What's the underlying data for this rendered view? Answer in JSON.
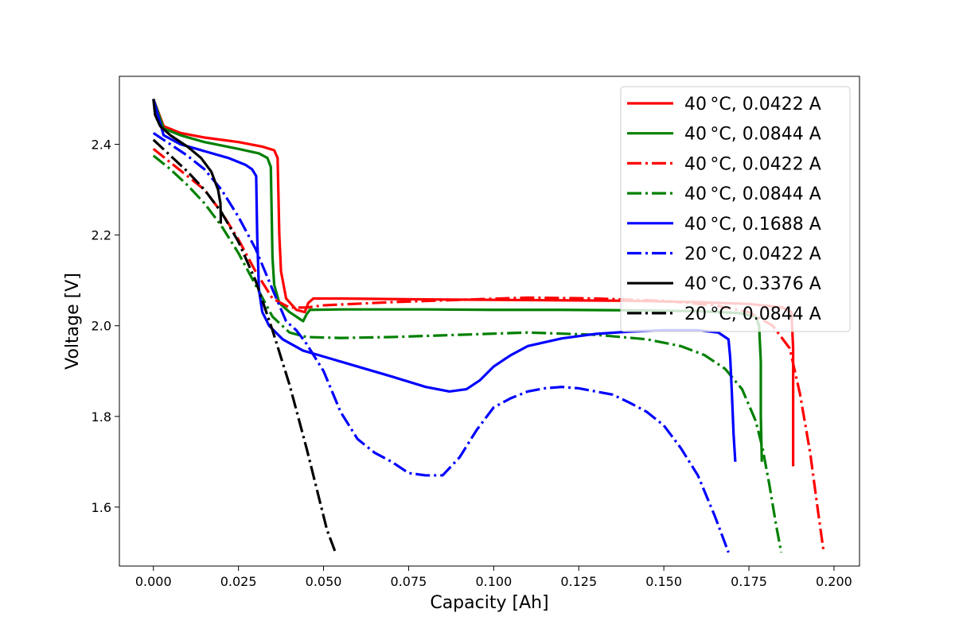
{
  "chart_data": {
    "type": "line",
    "xlabel": "Capacity [Ah]",
    "ylabel": "Voltage [V]",
    "xlim": [
      -0.01,
      0.2075
    ],
    "ylim": [
      1.47,
      2.55
    ],
    "xticks": [
      0.0,
      0.025,
      0.05,
      0.075,
      0.1,
      0.125,
      0.15,
      0.175,
      0.2
    ],
    "xtick_labels": [
      "0.000",
      "0.025",
      "0.050",
      "0.075",
      "0.100",
      "0.125",
      "0.150",
      "0.175",
      "0.200"
    ],
    "yticks": [
      1.6,
      1.8,
      2.0,
      2.2,
      2.4
    ],
    "ytick_labels": [
      "1.6",
      "1.8",
      "2.0",
      "2.2",
      "2.4"
    ],
    "grid": false,
    "legend_position": "top-right",
    "series": [
      {
        "name": "40$^\\circ$C, 0.0422 A",
        "legend_label": "40 °C, 0.0422 A",
        "color": "#ff0000",
        "linestyle": "solid",
        "x": [
          0.0,
          0.003,
          0.008,
          0.015,
          0.025,
          0.032,
          0.0355,
          0.0365,
          0.037,
          0.0375,
          0.039,
          0.042,
          0.0445,
          0.0455,
          0.047,
          0.055,
          0.08,
          0.1,
          0.12,
          0.14,
          0.16,
          0.175,
          0.185,
          0.1875,
          0.188,
          0.188,
          0.188
        ],
        "y": [
          2.5,
          2.44,
          2.425,
          2.415,
          2.405,
          2.395,
          2.387,
          2.37,
          2.2,
          2.12,
          2.06,
          2.035,
          2.03,
          2.05,
          2.06,
          2.06,
          2.058,
          2.057,
          2.056,
          2.055,
          2.052,
          2.048,
          2.04,
          2.03,
          1.95,
          1.8,
          1.69
        ]
      },
      {
        "name": "40$^\\circ$C, 0.0844 A",
        "legend_label": "40 °C, 0.0844 A",
        "color": "#008000",
        "linestyle": "solid",
        "x": [
          0.0,
          0.003,
          0.008,
          0.015,
          0.025,
          0.031,
          0.0335,
          0.0345,
          0.035,
          0.0355,
          0.037,
          0.04,
          0.044,
          0.045,
          0.046,
          0.055,
          0.08,
          0.1,
          0.12,
          0.14,
          0.16,
          0.172,
          0.177,
          0.178,
          0.1785,
          0.1785,
          0.1788
        ],
        "y": [
          2.5,
          2.435,
          2.42,
          2.405,
          2.39,
          2.38,
          2.37,
          2.35,
          2.15,
          2.09,
          2.05,
          2.03,
          2.01,
          2.025,
          2.035,
          2.036,
          2.036,
          2.035,
          2.035,
          2.034,
          2.032,
          2.028,
          2.02,
          2.0,
          1.92,
          1.8,
          1.7
        ]
      },
      {
        "name": "40$^\\circ$C, 0.0422 A",
        "legend_label": "40 °C, 0.0422 A",
        "color": "#ff0000",
        "linestyle": "dashdot",
        "x": [
          0.0,
          0.005,
          0.01,
          0.015,
          0.02,
          0.025,
          0.03,
          0.035,
          0.04,
          0.045,
          0.05,
          0.07,
          0.09,
          0.11,
          0.13,
          0.15,
          0.165,
          0.175,
          0.182,
          0.187,
          0.19,
          0.193,
          0.1955,
          0.197
        ],
        "y": [
          2.39,
          2.36,
          2.33,
          2.3,
          2.25,
          2.19,
          2.12,
          2.06,
          2.04,
          2.04,
          2.045,
          2.052,
          2.057,
          2.062,
          2.06,
          2.055,
          2.045,
          2.03,
          2.0,
          1.95,
          1.85,
          1.72,
          1.58,
          1.5
        ]
      },
      {
        "name": "40$^\\circ$C, 0.0844 A",
        "legend_label": "40 °C, 0.0844 A",
        "color": "#008000",
        "linestyle": "dashdot",
        "x": [
          0.0,
          0.005,
          0.01,
          0.015,
          0.02,
          0.025,
          0.03,
          0.035,
          0.04,
          0.045,
          0.055,
          0.07,
          0.09,
          0.11,
          0.13,
          0.145,
          0.155,
          0.162,
          0.168,
          0.173,
          0.177,
          0.179,
          0.181,
          0.183,
          0.1845
        ],
        "y": [
          2.375,
          2.345,
          2.31,
          2.27,
          2.22,
          2.16,
          2.09,
          2.02,
          1.985,
          1.975,
          1.973,
          1.975,
          1.98,
          1.985,
          1.98,
          1.97,
          1.955,
          1.935,
          1.905,
          1.86,
          1.79,
          1.73,
          1.65,
          1.56,
          1.5
        ]
      },
      {
        "name": "40$^\\circ$C, 0.1688 A",
        "legend_label": "40 °C, 0.1688 A",
        "color": "#0000ff",
        "linestyle": "solid",
        "x": [
          0.0,
          0.003,
          0.008,
          0.015,
          0.022,
          0.027,
          0.029,
          0.0302,
          0.0305,
          0.031,
          0.032,
          0.034,
          0.038,
          0.044,
          0.05,
          0.06,
          0.07,
          0.08,
          0.087,
          0.092,
          0.096,
          0.1,
          0.105,
          0.11,
          0.12,
          0.13,
          0.14,
          0.15,
          0.16,
          0.166,
          0.169,
          0.1695,
          0.17,
          0.1705,
          0.171
        ],
        "y": [
          2.5,
          2.42,
          2.4,
          2.385,
          2.37,
          2.355,
          2.345,
          2.33,
          2.2,
          2.08,
          2.03,
          2.0,
          1.97,
          1.945,
          1.932,
          1.91,
          1.888,
          1.865,
          1.855,
          1.86,
          1.88,
          1.91,
          1.935,
          1.955,
          1.972,
          1.982,
          1.987,
          1.99,
          1.99,
          1.985,
          1.97,
          1.93,
          1.85,
          1.76,
          1.7
        ]
      },
      {
        "name": "20$^\\circ$C, 0.0422 A",
        "legend_label": "20 °C, 0.0422 A",
        "color": "#0000ff",
        "linestyle": "dashdot",
        "x": [
          0.0,
          0.005,
          0.01,
          0.015,
          0.02,
          0.025,
          0.03,
          0.035,
          0.039,
          0.042,
          0.045,
          0.05,
          0.055,
          0.06,
          0.065,
          0.07,
          0.075,
          0.08,
          0.085,
          0.09,
          0.095,
          0.1,
          0.105,
          0.11,
          0.115,
          0.12,
          0.125,
          0.13,
          0.135,
          0.14,
          0.145,
          0.15,
          0.155,
          0.16,
          0.165,
          0.169
        ],
        "y": [
          2.425,
          2.4,
          2.375,
          2.345,
          2.3,
          2.24,
          2.17,
          2.08,
          2.01,
          1.99,
          1.96,
          1.9,
          1.81,
          1.75,
          1.72,
          1.7,
          1.675,
          1.67,
          1.67,
          1.71,
          1.77,
          1.82,
          1.84,
          1.855,
          1.862,
          1.865,
          1.862,
          1.855,
          1.848,
          1.83,
          1.81,
          1.78,
          1.73,
          1.67,
          1.58,
          1.5
        ]
      },
      {
        "name": "40$^\\circ$C, 0.3376 A",
        "legend_label": "40 °C, 0.3376 A",
        "color": "#000000",
        "linestyle": "solid",
        "x": [
          0.0,
          0.0005,
          0.002,
          0.005,
          0.01,
          0.014,
          0.017,
          0.019,
          0.0197,
          0.0198,
          0.0198
        ],
        "y": [
          2.5,
          2.465,
          2.44,
          2.42,
          2.395,
          2.37,
          2.34,
          2.3,
          2.27,
          2.24,
          2.225
        ]
      },
      {
        "name": "20$^\\circ$C, 0.0844 A",
        "legend_label": "20 °C, 0.0844 A",
        "color": "#000000",
        "linestyle": "dashdot",
        "x": [
          0.0,
          0.005,
          0.01,
          0.015,
          0.02,
          0.025,
          0.03,
          0.035,
          0.04,
          0.045,
          0.048,
          0.051,
          0.0535
        ],
        "y": [
          2.41,
          2.375,
          2.34,
          2.3,
          2.25,
          2.185,
          2.1,
          1.99,
          1.87,
          1.73,
          1.64,
          1.55,
          1.5
        ]
      }
    ]
  }
}
